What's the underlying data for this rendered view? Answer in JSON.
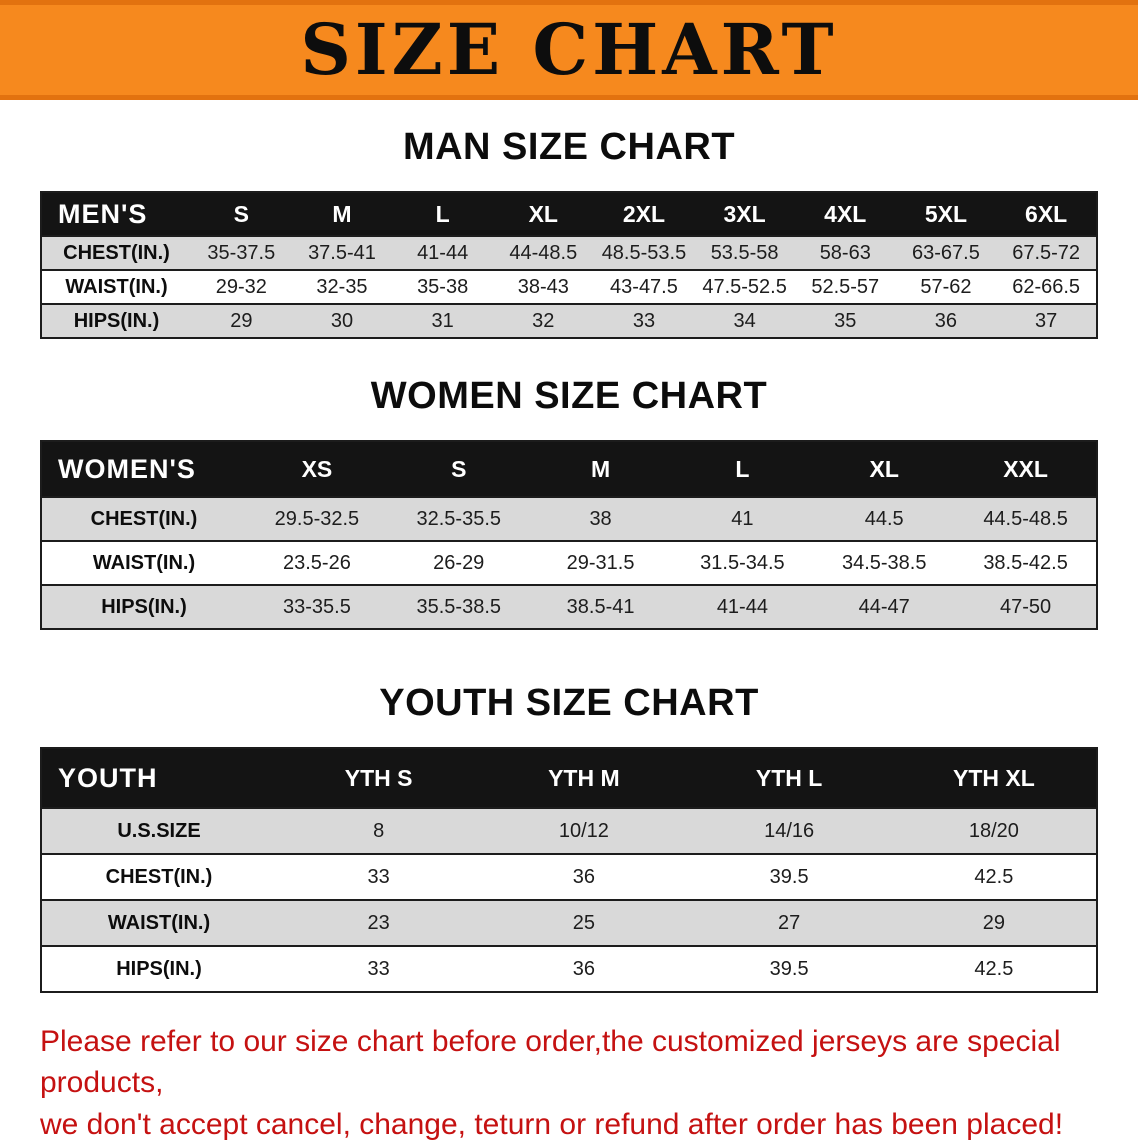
{
  "banner": {
    "title": "SIZE CHART",
    "background_color": "#f6891e"
  },
  "sections": {
    "men": {
      "heading": "MAN SIZE CHART",
      "table": {
        "header": [
          "MEN'S",
          "S",
          "M",
          "L",
          "XL",
          "2XL",
          "3XL",
          "4XL",
          "5XL",
          "6XL"
        ],
        "rows": [
          [
            "CHEST(IN.)",
            "35-37.5",
            "37.5-41",
            "41-44",
            "44-48.5",
            "48.5-53.5",
            "53.5-58",
            "58-63",
            "63-67.5",
            "67.5-72"
          ],
          [
            "WAIST(IN.)",
            "29-32",
            "32-35",
            "35-38",
            "38-43",
            "43-47.5",
            "47.5-52.5",
            "52.5-57",
            "57-62",
            "62-66.5"
          ],
          [
            "HIPS(IN.)",
            "29",
            "30",
            "31",
            "32",
            "33",
            "34",
            "35",
            "36",
            "37"
          ]
        ]
      }
    },
    "women": {
      "heading": "WOMEN SIZE CHART",
      "table": {
        "header": [
          "WOMEN'S",
          "XS",
          "S",
          "M",
          "L",
          "XL",
          "XXL"
        ],
        "rows": [
          [
            "CHEST(IN.)",
            "29.5-32.5",
            "32.5-35.5",
            "38",
            "41",
            "44.5",
            "44.5-48.5"
          ],
          [
            "WAIST(IN.)",
            "23.5-26",
            "26-29",
            "29-31.5",
            "31.5-34.5",
            "34.5-38.5",
            "38.5-42.5"
          ],
          [
            "HIPS(IN.)",
            "33-35.5",
            "35.5-38.5",
            "38.5-41",
            "41-44",
            "44-47",
            "47-50"
          ]
        ]
      }
    },
    "youth": {
      "heading": "YOUTH SIZE CHART",
      "table": {
        "header": [
          "YOUTH",
          "YTH S",
          "YTH M",
          "YTH L",
          "YTH XL"
        ],
        "rows": [
          [
            "U.S.SIZE",
            "8",
            "10/12",
            "14/16",
            "18/20"
          ],
          [
            "CHEST(IN.)",
            "33",
            "36",
            "39.5",
            "42.5"
          ],
          [
            "WAIST(IN.)",
            "23",
            "25",
            "27",
            "29"
          ],
          [
            "HIPS(IN.)",
            "33",
            "36",
            "39.5",
            "42.5"
          ]
        ]
      }
    }
  },
  "disclaimer": {
    "line1": "Please refer to our size chart before order,the customized jerseys are special products,",
    "line2": "we don't accept cancel, change, teturn or refund after order has been placed!",
    "text_color": "#c51111"
  }
}
